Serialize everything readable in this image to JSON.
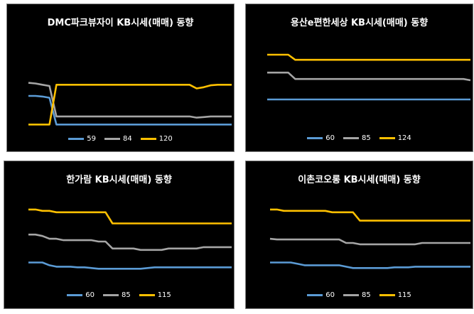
{
  "colors": {
    "s60": "#5b9bd5",
    "s85": "#a5a5a5",
    "sbig": "#ffc000",
    "background": "#000000"
  },
  "chart_data": [
    {
      "type": "line",
      "title": "DMC파크뷰자이 KB시세(매매) 동향",
      "legend_position": "bottom",
      "series": [
        {
          "name": "59",
          "values": [
            5.6,
            5.6,
            5.5,
            5.3,
            1.0,
            1.0,
            1.0,
            1.0,
            1.0,
            1.0,
            1.0,
            1.0,
            1.0,
            1.0,
            1.0,
            1.0,
            1.0,
            1.0,
            1.0,
            1.0,
            1.0,
            1.0,
            1.0,
            1.0,
            1.0,
            1.0,
            1.0,
            1.0,
            1.0,
            1.0
          ]
        },
        {
          "name": "84",
          "values": [
            7.7,
            7.6,
            7.4,
            7.2,
            2.3,
            2.3,
            2.3,
            2.3,
            2.3,
            2.3,
            2.3,
            2.3,
            2.3,
            2.3,
            2.3,
            2.3,
            2.3,
            2.3,
            2.3,
            2.3,
            2.3,
            2.3,
            2.3,
            2.3,
            2.1,
            2.2,
            2.3,
            2.3,
            2.3,
            2.3
          ]
        },
        {
          "name": "120",
          "values": [
            1.0,
            1.0,
            1.0,
            1.0,
            7.4,
            7.4,
            7.4,
            7.4,
            7.4,
            7.4,
            7.4,
            7.4,
            7.4,
            7.4,
            7.4,
            7.4,
            7.4,
            7.4,
            7.4,
            7.4,
            7.4,
            7.4,
            7.4,
            7.4,
            6.8,
            7.0,
            7.3,
            7.4,
            7.4,
            7.4
          ]
        }
      ]
    },
    {
      "type": "line",
      "title": "용산e편한세상 KB시세(매매) 동향",
      "legend_position": "bottom",
      "series": [
        {
          "name": "60",
          "values": [
            3.0,
            3.0,
            3.0,
            3.0,
            3.0,
            3.0,
            3.0,
            3.0,
            3.0,
            3.0,
            3.0,
            3.0,
            3.0,
            3.0,
            3.0,
            3.0,
            3.0,
            3.0,
            3.0,
            3.0,
            3.0,
            3.0,
            3.0,
            3.0,
            3.0,
            3.0,
            3.0,
            3.0,
            3.0,
            3.0
          ]
        },
        {
          "name": "85",
          "values": [
            5.1,
            5.1,
            5.1,
            5.1,
            4.6,
            4.6,
            4.6,
            4.6,
            4.6,
            4.6,
            4.6,
            4.6,
            4.6,
            4.6,
            4.6,
            4.6,
            4.6,
            4.6,
            4.6,
            4.6,
            4.6,
            4.6,
            4.6,
            4.6,
            4.6,
            4.6,
            4.6,
            4.6,
            4.6,
            4.5
          ]
        },
        {
          "name": "124",
          "values": [
            6.5,
            6.5,
            6.5,
            6.5,
            6.1,
            6.1,
            6.1,
            6.1,
            6.1,
            6.1,
            6.1,
            6.1,
            6.1,
            6.1,
            6.1,
            6.1,
            6.1,
            6.1,
            6.1,
            6.1,
            6.1,
            6.1,
            6.1,
            6.1,
            6.1,
            6.1,
            6.1,
            6.1,
            6.1,
            6.1
          ]
        }
      ]
    },
    {
      "type": "line",
      "title": "한가람 KB시세(매매) 동향",
      "legend_position": "bottom",
      "series": [
        {
          "name": "60",
          "values": [
            3.3,
            3.3,
            3.3,
            3.1,
            3.0,
            3.0,
            3.0,
            2.95,
            2.95,
            2.9,
            2.85,
            2.85,
            2.85,
            2.85,
            2.85,
            2.85,
            2.85,
            2.9,
            2.95,
            2.95,
            2.95,
            2.95,
            2.95,
            2.95,
            2.95,
            2.95,
            2.95,
            2.95,
            2.95,
            2.95
          ]
        },
        {
          "name": "85",
          "values": [
            5.3,
            5.3,
            5.2,
            5.0,
            5.0,
            4.9,
            4.9,
            4.9,
            4.9,
            4.9,
            4.8,
            4.8,
            4.3,
            4.3,
            4.3,
            4.3,
            4.2,
            4.2,
            4.2,
            4.2,
            4.3,
            4.3,
            4.3,
            4.3,
            4.3,
            4.4,
            4.4,
            4.4,
            4.4,
            4.4
          ]
        },
        {
          "name": "115",
          "values": [
            7.1,
            7.1,
            7.0,
            7.0,
            6.9,
            6.9,
            6.9,
            6.9,
            6.9,
            6.9,
            6.9,
            6.9,
            6.1,
            6.1,
            6.1,
            6.1,
            6.1,
            6.1,
            6.1,
            6.1,
            6.1,
            6.1,
            6.1,
            6.1,
            6.1,
            6.1,
            6.1,
            6.1,
            6.1,
            6.1
          ]
        }
      ]
    },
    {
      "type": "line",
      "title": "이촌코오롱 KB시세(매매) 동향",
      "legend_position": "bottom",
      "series": [
        {
          "name": "60",
          "values": [
            3.3,
            3.3,
            3.3,
            3.3,
            3.2,
            3.1,
            3.1,
            3.1,
            3.1,
            3.1,
            3.1,
            3.0,
            2.9,
            2.9,
            2.9,
            2.9,
            2.9,
            2.9,
            2.95,
            2.95,
            2.95,
            3.0,
            3.0,
            3.0,
            3.0,
            3.0,
            3.0,
            3.0,
            3.0,
            3.0
          ]
        },
        {
          "name": "85",
          "values": [
            5.0,
            4.95,
            4.95,
            4.95,
            4.95,
            4.95,
            4.95,
            4.95,
            4.95,
            4.95,
            4.95,
            4.7,
            4.7,
            4.6,
            4.6,
            4.6,
            4.6,
            4.6,
            4.6,
            4.6,
            4.6,
            4.6,
            4.7,
            4.7,
            4.7,
            4.7,
            4.7,
            4.7,
            4.7,
            4.7
          ]
        },
        {
          "name": "115",
          "values": [
            7.1,
            7.1,
            7.0,
            7.0,
            7.0,
            7.0,
            7.0,
            7.0,
            7.0,
            6.9,
            6.9,
            6.9,
            6.9,
            6.3,
            6.3,
            6.3,
            6.3,
            6.3,
            6.3,
            6.3,
            6.3,
            6.3,
            6.3,
            6.3,
            6.3,
            6.3,
            6.3,
            6.3,
            6.3,
            6.3
          ]
        }
      ]
    }
  ]
}
